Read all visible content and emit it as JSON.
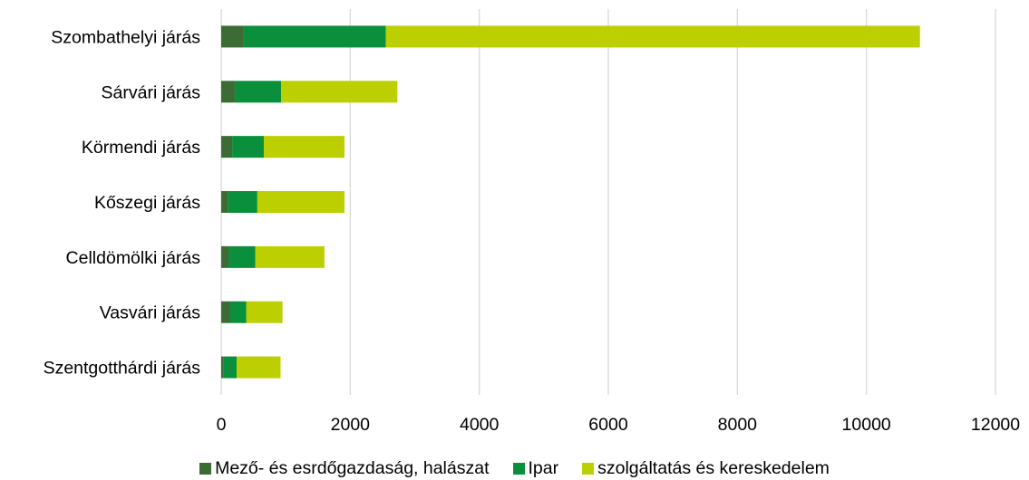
{
  "chart_data": {
    "type": "bar",
    "orientation": "horizontal",
    "stacked": true,
    "title": "",
    "xlabel": "",
    "ylabel": "",
    "categories": [
      "Szombathelyi járás",
      "Sárvári járás",
      "Körmendi járás",
      "Kőszegi járás",
      "Celldömölki járás",
      "Vasvári járás",
      "Szentgotthárdi járás"
    ],
    "series": [
      {
        "name": "Mező- és esrdőgazdaság, halászat",
        "color": "#3d6b35",
        "values": [
          350,
          210,
          170,
          110,
          120,
          140,
          40
        ]
      },
      {
        "name": "Ipar",
        "color": "#0a8f3c",
        "values": [
          2200,
          720,
          490,
          450,
          410,
          250,
          200
        ]
      },
      {
        "name": "szolgáltatás és kereskedelem",
        "color": "#bccf00",
        "values": [
          8280,
          1800,
          1250,
          1350,
          1070,
          560,
          680
        ]
      }
    ],
    "xlim": [
      0,
      12000
    ],
    "xticks": [
      "0",
      "2000",
      "4000",
      "6000",
      "8000",
      "10000",
      "12000"
    ],
    "grid": true,
    "legend_position": "bottom"
  }
}
